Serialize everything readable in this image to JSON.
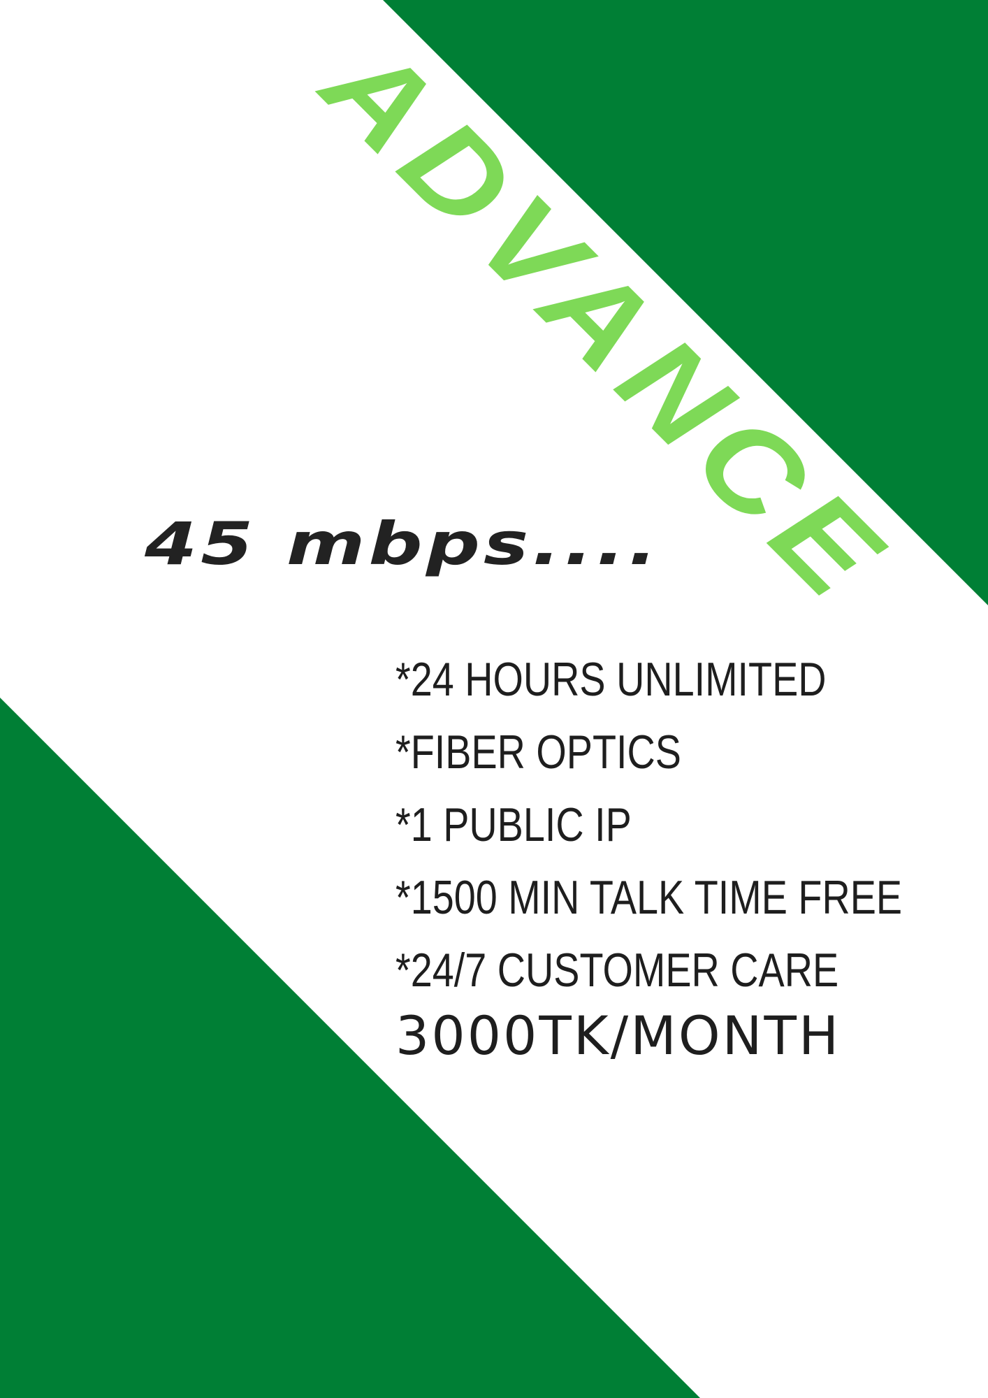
{
  "poster": {
    "plan_name": "ADVANCE",
    "speed": "45 mbps....",
    "features": [
      "*24 HOURS UNLIMITED",
      "*FIBER OPTICS",
      "*1 PUBLIC IP",
      "*1500 MIN TALK TIME FREE",
      "*24/7 CUSTOMER CARE"
    ],
    "price": "3000TK/MONTH"
  },
  "colors": {
    "dark_green": "#007f35",
    "light_green": "#7ed957",
    "text": "#1e1e1e",
    "background": "#ffffff"
  }
}
